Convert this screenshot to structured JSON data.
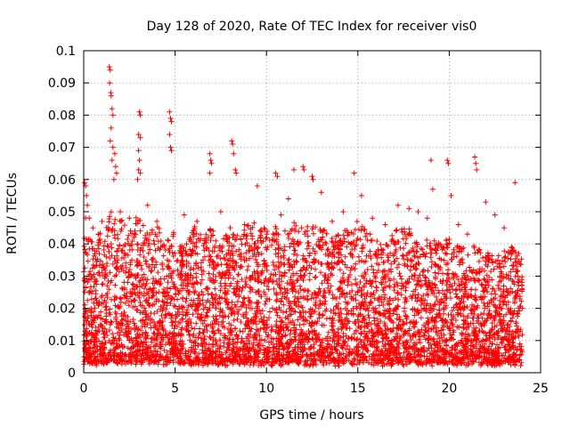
{
  "chart_data": {
    "type": "scatter",
    "title": "Day 128 of 2020, Rate Of TEC Index for receiver vis0",
    "xlabel": "GPS time / hours",
    "ylabel": "ROTI / TECUs",
    "xlim": [
      0,
      25
    ],
    "ylim": [
      0,
      0.1
    ],
    "x_ticks": [
      "0",
      "5",
      "10",
      "15",
      "20",
      "25"
    ],
    "y_ticks": [
      "0",
      "0.01",
      "0.02",
      "0.03",
      "0.04",
      "0.05",
      "0.06",
      "0.07",
      "0.08",
      "0.09",
      "0.1"
    ],
    "grid": true,
    "legend": "none",
    "marker": "plus",
    "color": "#ff0000",
    "series": [
      {
        "points": [
          [
            1.4,
            0.095
          ],
          [
            1.45,
            0.094
          ],
          [
            1.42,
            0.09
          ],
          [
            1.48,
            0.087
          ],
          [
            1.5,
            0.086
          ],
          [
            1.55,
            0.082
          ],
          [
            1.6,
            0.08
          ],
          [
            1.5,
            0.076
          ],
          [
            1.45,
            0.072
          ],
          [
            1.6,
            0.07
          ],
          [
            1.7,
            0.068
          ],
          [
            1.55,
            0.066
          ],
          [
            1.75,
            0.064
          ],
          [
            1.8,
            0.062
          ],
          [
            1.65,
            0.06
          ],
          [
            3.05,
            0.081
          ],
          [
            3.1,
            0.08
          ],
          [
            3.0,
            0.074
          ],
          [
            3.1,
            0.073
          ],
          [
            3.0,
            0.069
          ],
          [
            3.05,
            0.066
          ],
          [
            3.0,
            0.063
          ],
          [
            3.1,
            0.062
          ],
          [
            2.95,
            0.06
          ],
          [
            4.7,
            0.081
          ],
          [
            4.75,
            0.079
          ],
          [
            4.8,
            0.078
          ],
          [
            4.7,
            0.074
          ],
          [
            4.75,
            0.07
          ],
          [
            4.8,
            0.069
          ],
          [
            6.9,
            0.068
          ],
          [
            6.95,
            0.066
          ],
          [
            7.0,
            0.065
          ],
          [
            6.9,
            0.062
          ],
          [
            8.1,
            0.072
          ],
          [
            8.15,
            0.071
          ],
          [
            8.2,
            0.068
          ],
          [
            8.3,
            0.063
          ],
          [
            8.35,
            0.062
          ],
          [
            10.5,
            0.062
          ],
          [
            10.6,
            0.061
          ],
          [
            11.5,
            0.063
          ],
          [
            12.0,
            0.064
          ],
          [
            12.05,
            0.063
          ],
          [
            12.5,
            0.061
          ],
          [
            12.55,
            0.06
          ],
          [
            14.8,
            0.062
          ],
          [
            19.0,
            0.066
          ],
          [
            19.9,
            0.066
          ],
          [
            19.95,
            0.065
          ],
          [
            21.4,
            0.067
          ],
          [
            21.45,
            0.065
          ],
          [
            21.5,
            0.063
          ],
          [
            23.6,
            0.059
          ],
          [
            19.1,
            0.057
          ],
          [
            20.1,
            0.055
          ],
          [
            0.05,
            0.059
          ],
          [
            0.1,
            0.058
          ],
          [
            0.15,
            0.055
          ],
          [
            0.2,
            0.052
          ],
          [
            0.3,
            0.048
          ],
          [
            0.5,
            0.045
          ],
          [
            0.8,
            0.043
          ],
          [
            1.0,
            0.047
          ],
          [
            2.0,
            0.05
          ],
          [
            2.5,
            0.048
          ],
          [
            3.5,
            0.052
          ],
          [
            4.0,
            0.047
          ],
          [
            5.5,
            0.049
          ],
          [
            6.2,
            0.047
          ],
          [
            7.5,
            0.05
          ],
          [
            8.8,
            0.046
          ],
          [
            9.5,
            0.058
          ],
          [
            10.8,
            0.049
          ],
          [
            11.2,
            0.054
          ],
          [
            13.0,
            0.056
          ],
          [
            13.6,
            0.047
          ],
          [
            14.2,
            0.05
          ],
          [
            15.2,
            0.055
          ],
          [
            15.8,
            0.048
          ],
          [
            16.5,
            0.046
          ],
          [
            17.2,
            0.052
          ],
          [
            17.8,
            0.051
          ],
          [
            18.3,
            0.05
          ],
          [
            18.8,
            0.048
          ],
          [
            20.5,
            0.046
          ],
          [
            21.0,
            0.043
          ],
          [
            22.0,
            0.053
          ],
          [
            22.5,
            0.049
          ],
          [
            23.0,
            0.045
          ],
          [
            23.4,
            0.039
          ],
          [
            23.8,
            0.037
          ]
        ]
      }
    ],
    "dense_band": {
      "x_range": [
        0,
        24
      ],
      "y_floor_range": [
        0.002,
        0.004
      ],
      "envelope_x": [
        0,
        0.5,
        1,
        1.5,
        2,
        2.5,
        3,
        3.5,
        4,
        4.5,
        5,
        5.5,
        6,
        6.5,
        7,
        7.5,
        8,
        8.5,
        9,
        9.5,
        10,
        10.5,
        11,
        11.5,
        12,
        12.5,
        13,
        13.5,
        14,
        14.5,
        15,
        15.5,
        16,
        16.5,
        17,
        17.5,
        18,
        18.5,
        19,
        19.5,
        20,
        20.5,
        21,
        21.5,
        22,
        22.5,
        23,
        23.5,
        24
      ],
      "envelope_y": [
        0.052,
        0.04,
        0.045,
        0.05,
        0.048,
        0.045,
        0.05,
        0.043,
        0.046,
        0.042,
        0.045,
        0.04,
        0.046,
        0.042,
        0.046,
        0.04,
        0.047,
        0.042,
        0.046,
        0.048,
        0.044,
        0.046,
        0.044,
        0.047,
        0.045,
        0.046,
        0.046,
        0.042,
        0.045,
        0.044,
        0.048,
        0.044,
        0.042,
        0.04,
        0.044,
        0.046,
        0.044,
        0.04,
        0.043,
        0.04,
        0.042,
        0.04,
        0.038,
        0.04,
        0.038,
        0.036,
        0.038,
        0.04,
        0.035
      ]
    }
  }
}
